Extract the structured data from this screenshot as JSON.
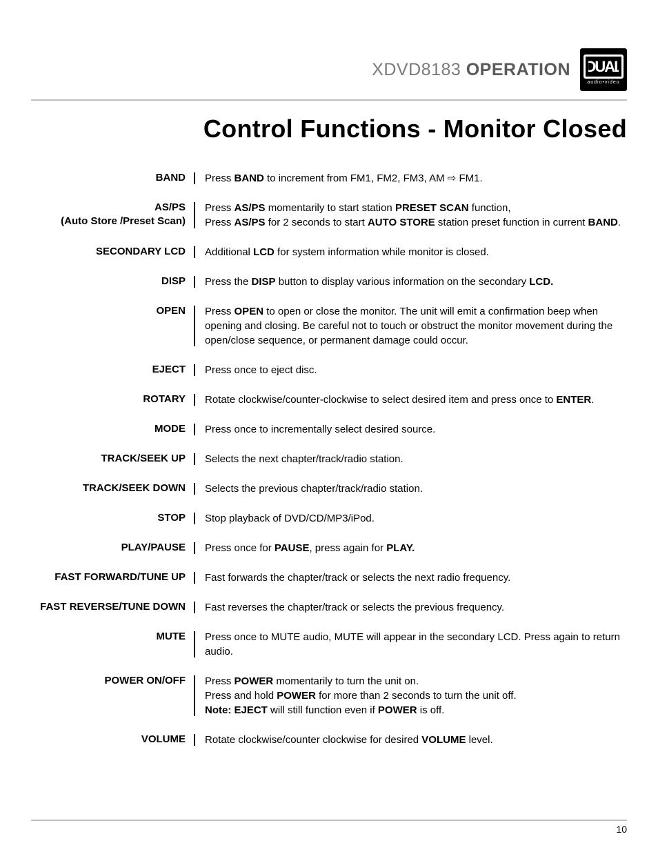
{
  "header": {
    "model": "XDVD8183",
    "section": "OPERATION",
    "logo_mark": "DUAL",
    "logo_sub": "audio•video"
  },
  "title": "Control Functions - Monitor Closed",
  "rows": [
    {
      "label": "BAND",
      "desc": "Press <b>BAND</b> to increment from FM1, FM2, FM3, AM ⇨ FM1."
    },
    {
      "label": "AS/PS\n(Auto Store /Preset Scan)",
      "desc": "Press <b>AS/PS</b> momentarily to start station <b>PRESET SCAN</b> function,<br>Press <b>AS/PS</b> for 2 seconds to start <b>AUTO STORE</b> station preset function in current <b>BAND</b>."
    },
    {
      "label": "SECONDARY LCD",
      "desc": "Additional <b>LCD</b> for system information while monitor is closed."
    },
    {
      "label": "DISP",
      "desc": "Press the <b>DISP</b> button to display various information on the secondary <b>LCD.</b>"
    },
    {
      "label": "OPEN",
      "desc": "Press <b>OPEN</b> to open or close the monitor. The unit will emit a confirmation beep when opening and closing. Be careful not to touch or obstruct the monitor movement during the open/close sequence, or permanent damage could occur."
    },
    {
      "label": "EJECT",
      "desc": "Press once to eject disc."
    },
    {
      "label": "ROTARY",
      "desc": "Rotate clockwise/counter-clockwise to select desired item and press once to <b>ENTER</b>."
    },
    {
      "label": "MODE",
      "desc": "Press once to incrementally select desired source."
    },
    {
      "label": "TRACK/SEEK UP",
      "desc": "Selects the next chapter/track/radio station."
    },
    {
      "label": "TRACK/SEEK DOWN",
      "desc": "Selects the previous chapter/track/radio station."
    },
    {
      "label": "STOP",
      "desc": "Stop playback of DVD/CD/MP3/iPod."
    },
    {
      "label": "PLAY/PAUSE",
      "desc": "Press once for <b>PAUSE</b>, press again for <b>PLAY.</b>"
    },
    {
      "label": "FAST FORWARD/TUNE UP",
      "desc": "Fast forwards the chapter/track or selects the next radio frequency."
    },
    {
      "label": "FAST REVERSE/TUNE DOWN",
      "desc": "Fast reverses the chapter/track or selects the previous frequency."
    },
    {
      "label": "MUTE",
      "desc": "Press once to MUTE audio, MUTE will appear in the secondary LCD. Press again to return audio."
    },
    {
      "label": "POWER ON/OFF",
      "desc": "Press <b>POWER</b> momentarily to turn the unit on.<br>Press and hold <b>POWER</b> for more than 2 seconds to turn the unit off.<br><b>Note: EJECT</b> will still function even if <b>POWER</b> is off."
    },
    {
      "label": "VOLUME",
      "desc": "Rotate clockwise/counter clockwise for desired <b>VOLUME</b> level."
    }
  ],
  "page_number": "10"
}
